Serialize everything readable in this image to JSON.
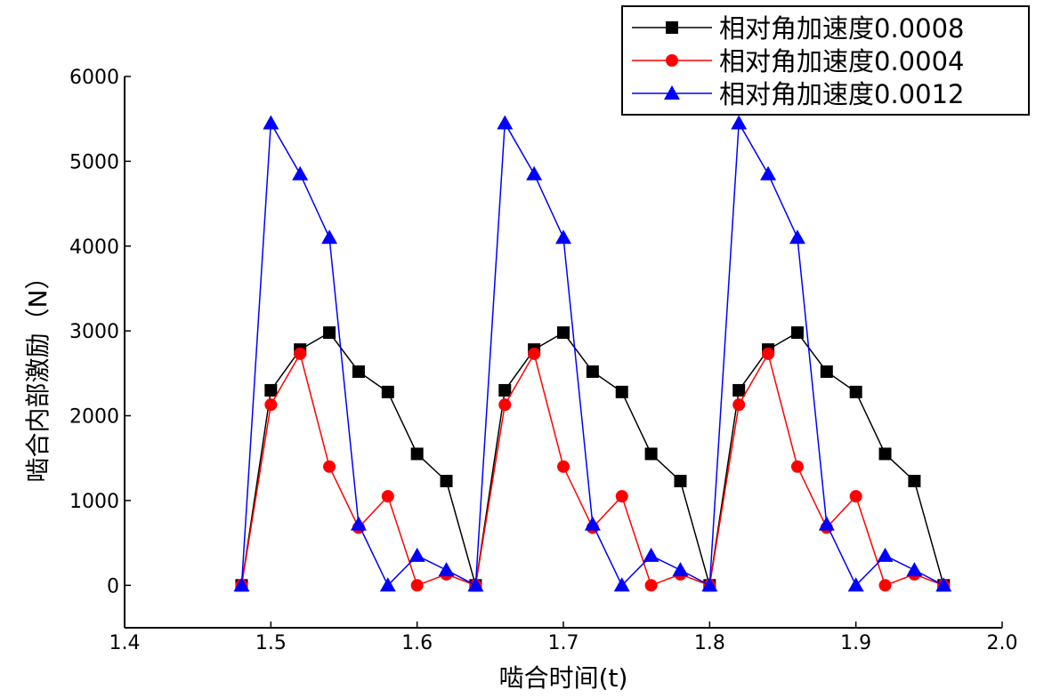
{
  "chart_data": {
    "type": "line",
    "title": "",
    "xlabel": "啮合时间(t)",
    "ylabel": "啮合内部激励（N）",
    "xlim": [
      1.4,
      2.0
    ],
    "ylim": [
      -500,
      6000
    ],
    "x_ticks": [
      "1.4",
      "1.5",
      "1.6",
      "1.7",
      "1.8",
      "1.9",
      "2.0"
    ],
    "y_ticks": [
      "0",
      "1000",
      "2000",
      "3000",
      "4000",
      "5000",
      "6000"
    ],
    "x_tick_values": [
      1.4,
      1.5,
      1.6,
      1.7,
      1.8,
      1.9,
      2.0
    ],
    "y_tick_values": [
      0,
      1000,
      2000,
      3000,
      4000,
      5000,
      6000
    ],
    "grid": false,
    "legend_position": "top-right",
    "x": [
      1.48,
      1.5,
      1.52,
      1.54,
      1.56,
      1.58,
      1.6,
      1.62,
      1.64,
      1.66,
      1.68,
      1.7,
      1.72,
      1.74,
      1.76,
      1.78,
      1.8,
      1.82,
      1.84,
      1.86,
      1.88,
      1.9,
      1.92,
      1.94,
      1.96
    ],
    "series": [
      {
        "name": "相对角加速度0.0008",
        "color": "#000000",
        "marker": "square",
        "values": [
          0,
          2300,
          2780,
          2980,
          2520,
          2280,
          1550,
          1230,
          0,
          2300,
          2780,
          2980,
          2520,
          2280,
          1550,
          1230,
          0,
          2300,
          2780,
          2980,
          2520,
          2280,
          1550,
          1230,
          0
        ]
      },
      {
        "name": "相对角加速度0.0004",
        "color": "#ff0000",
        "marker": "circle",
        "values": [
          0,
          2130,
          2730,
          1400,
          680,
          1050,
          0,
          130,
          0,
          2130,
          2730,
          1400,
          680,
          1050,
          0,
          130,
          0,
          2130,
          2730,
          1400,
          680,
          1050,
          0,
          130,
          0
        ]
      },
      {
        "name": "相对角加速度0.0012",
        "color": "#0000ff",
        "marker": "triangle",
        "values": [
          0,
          5450,
          4850,
          4100,
          720,
          0,
          350,
          180,
          0,
          5450,
          4850,
          4100,
          720,
          0,
          350,
          180,
          0,
          5450,
          4850,
          4100,
          720,
          0,
          350,
          180,
          0
        ]
      }
    ]
  }
}
